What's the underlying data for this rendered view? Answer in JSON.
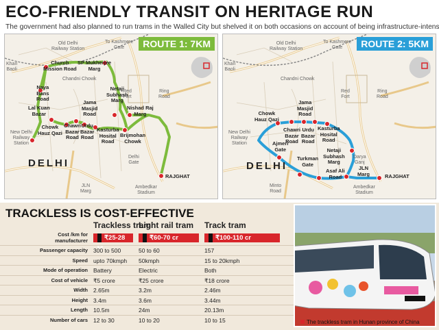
{
  "headline": "ECO-FRIENDLY TRANSIT ON HERITAGE RUN",
  "subhead": "The government had also planned to run trams in the Walled City but shelved it on both occasions on account of being infrastructure-intensive",
  "route1": {
    "badge": "ROUTE 1: 7KM",
    "color": "#7dbb3c",
    "city": "DELHI",
    "labels": {
      "old_delhi": "Old Delhi\nRailway Station",
      "to_kashmere": "To Kashmere\nGate",
      "khari_baoli": "Khari\nBaoli",
      "church": "Church\nMission Road",
      "sp": "SP Mukherjee\nMarg",
      "chandni": "Chandni Chowk",
      "naya": "Naya\nBans\nRoad",
      "netaji": "Netaji\nSubhash\nMarg",
      "red_fort": "Red\nFort",
      "ring_road": "Ring\nRoad",
      "jama": "Jama\nMasjid\nRoad",
      "nishad": "Nishad Raj\nMarg",
      "lal_kuan": "Lal Kuan\nBazar",
      "chawri": "Chawri\nBazar\nRoad",
      "urdu": "Urdu\nBazar\nRoad",
      "kasturba": "Kasturba\nHosital\nRoad",
      "brijmohan": "Brijmohan\nChowk",
      "chowk_hauz": "Chowk\nHauz Qazi",
      "new_delhi": "New Delhi\nRailway\nStation",
      "delhi_gate": "Delhi\nGate",
      "rajghat": "RAJGHAT",
      "jln": "JLN\nMarg",
      "ambedkar": "Ambedkar\nStadium"
    }
  },
  "route2": {
    "badge": "ROUTE 2: 5KM",
    "color": "#2a9fd8",
    "city": "DELHI",
    "labels": {
      "old_delhi": "Old Delhi\nRailway Station",
      "to_kashmere": "To Kashmere\nGate",
      "khari_baoli": "Khari\nBaoli",
      "chandni": "Chandni Chowk",
      "ring_road": "Ring\nRoad",
      "red_fort": "Red\nFort",
      "jama": "Jama\nMasjid\nRoad",
      "chowk_hauz": "Chowk\nHauz Qazi",
      "chawri": "Chawri\nBazar\nRoad",
      "urdu": "Urdu\nBazar\nRoad",
      "kasturba": "Kasturba\nHosital\nRoad",
      "new_delhi": "New Delhi\nRailway\nStation",
      "ajmeri": "Ajmeri\nGate",
      "netaji": "Netaji\nSubhash\nMarg",
      "turkman": "Turkman\nGate",
      "darya": "Darya\nGanj",
      "asaf": "Asaf Ali\nRoad",
      "jln": "JLN\nMarg",
      "rajghat": "RAJGHAT",
      "minto": "Minto\nRoad",
      "ambedkar": "Ambedkar\nStadium"
    }
  },
  "comparison": {
    "title": "TRACKLESS IS COST-EFFECTIVE",
    "columns": [
      "Trackless tram",
      "Light rail tram",
      "Track tram"
    ],
    "cost_label": "Cost /km for\nmanufacturer",
    "costs": [
      "₹25-28 cr",
      "₹60-70 cr",
      "₹100-110 cr"
    ],
    "rows": [
      {
        "label": "Passenger capacity",
        "values": [
          "300 to 500",
          "50 to 60",
          "157"
        ]
      },
      {
        "label": "Speed",
        "values": [
          "upto 70kmph",
          "50kmph",
          "15 to 20kmph"
        ]
      },
      {
        "label": "Mode of operation",
        "values": [
          "Battery",
          "Electric",
          "Both"
        ]
      },
      {
        "label": "Cost of vehicle",
        "values": [
          "₹5 crore",
          "₹25 crore",
          "₹18 crore"
        ]
      },
      {
        "label": "Width",
        "values": [
          "2.65m",
          "3.2m",
          "2.46m"
        ]
      },
      {
        "label": "Height",
        "values": [
          "3.4m",
          "3.6m",
          "3.44m"
        ]
      },
      {
        "label": "Length",
        "values": [
          "10.5m",
          "24m",
          "20.13m"
        ]
      },
      {
        "label": "Number of cars",
        "values": [
          "12 to 30",
          "10 to 20",
          "10 to 15"
        ]
      }
    ],
    "accent": "#d8262b"
  },
  "photo_caption": "The trackless tram in Hunan province of China"
}
